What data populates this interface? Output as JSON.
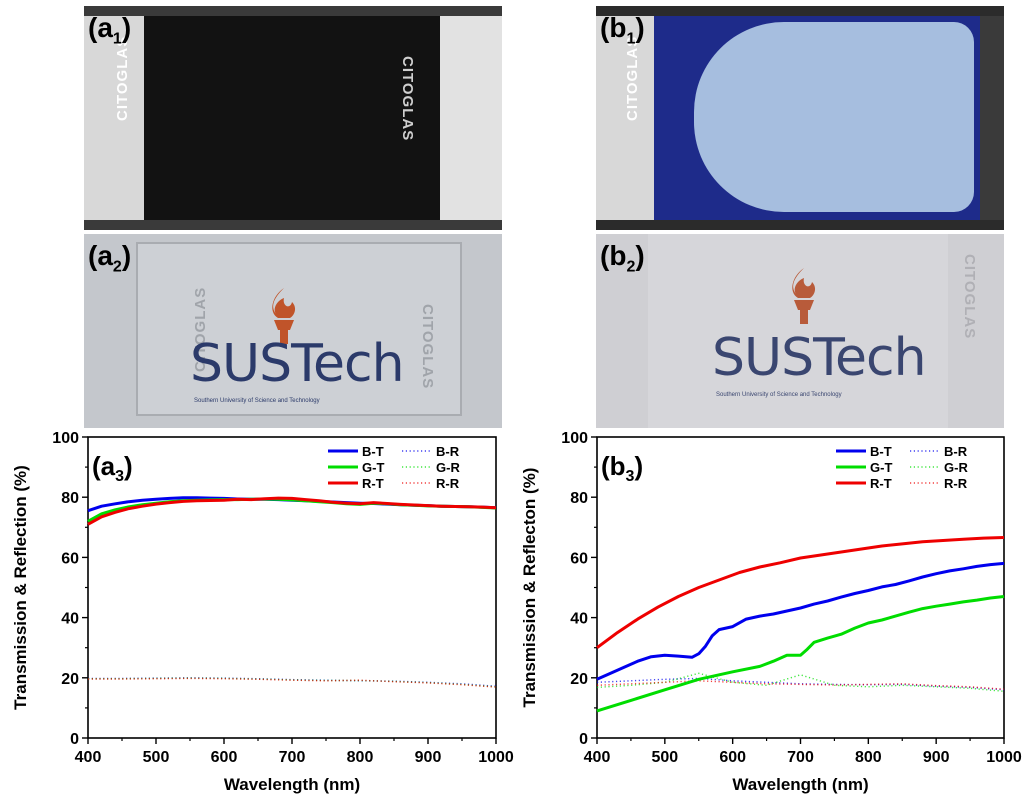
{
  "panels": {
    "a1": {
      "letter": "a",
      "index": "1",
      "glass_text": "CITOGLAS"
    },
    "b1": {
      "letter": "b",
      "index": "1",
      "glass_text": "CITOGLAS"
    },
    "a2": {
      "letter": "a",
      "index": "2",
      "glass_text": "CITOGLAS",
      "logo_text": "SUSTech",
      "logo_sub": "Southern University of Science and Technology"
    },
    "b2": {
      "letter": "b",
      "index": "2",
      "glass_text": "CITOGLAS",
      "logo_text": "SUSTech",
      "logo_sub": "Southern University of Science and Technology"
    }
  },
  "colors": {
    "blue": "#0000ee",
    "green": "#00dd00",
    "red": "#ee0000"
  },
  "chart_data": [
    {
      "type": "line",
      "panel_label": {
        "letter": "a",
        "index": "3"
      },
      "xlabel": "Wavelength (nm)",
      "ylabel": "Transmission & Reflection (%)",
      "xlim": [
        400,
        1000
      ],
      "ylim": [
        0,
        100
      ],
      "xticks": [
        400,
        500,
        600,
        700,
        800,
        900,
        1000
      ],
      "yticks": [
        0,
        20,
        40,
        60,
        80,
        100
      ],
      "legend_position": "top-right",
      "series": [
        {
          "name": "B-T",
          "color": "#0000ee",
          "style": "solid",
          "x": [
            400,
            420,
            440,
            460,
            480,
            500,
            520,
            540,
            560,
            580,
            600,
            620,
            640,
            660,
            680,
            700,
            720,
            740,
            760,
            780,
            800,
            820,
            840,
            860,
            880,
            900,
            920,
            940,
            960,
            980,
            1000
          ],
          "y": [
            75.5,
            77,
            77.8,
            78.5,
            79,
            79.3,
            79.6,
            79.8,
            79.8,
            79.7,
            79.6,
            79.4,
            79.3,
            79.3,
            79.2,
            79,
            78.8,
            78.6,
            78.4,
            78.2,
            78,
            77.9,
            77.7,
            77.5,
            77.3,
            77.2,
            77,
            76.9,
            76.8,
            76.7,
            76.5
          ]
        },
        {
          "name": "G-T",
          "color": "#00dd00",
          "style": "solid",
          "x": [
            400,
            420,
            440,
            460,
            480,
            500,
            520,
            540,
            560,
            580,
            600,
            620,
            640,
            660,
            680,
            700,
            720,
            740,
            760,
            780,
            800,
            820,
            840,
            860,
            880,
            900,
            920,
            940,
            960,
            980,
            1000
          ],
          "y": [
            72,
            74.5,
            75.8,
            76.8,
            77.5,
            78,
            78.5,
            78.8,
            79,
            79.1,
            79.2,
            79.2,
            79.3,
            79.4,
            79.3,
            79.1,
            78.8,
            78.5,
            78.2,
            77.8,
            77.6,
            78,
            77.8,
            77.5,
            77.3,
            77.1,
            77,
            76.9,
            76.8,
            76.6,
            76.4
          ]
        },
        {
          "name": "R-T",
          "color": "#ee0000",
          "style": "solid",
          "x": [
            400,
            420,
            440,
            460,
            480,
            500,
            520,
            540,
            560,
            580,
            600,
            620,
            640,
            660,
            680,
            700,
            720,
            740,
            760,
            780,
            800,
            820,
            840,
            860,
            880,
            900,
            920,
            940,
            960,
            980,
            1000
          ],
          "y": [
            71,
            73.5,
            75,
            76.2,
            77,
            77.7,
            78.2,
            78.6,
            78.8,
            78.9,
            79,
            79.3,
            79.2,
            79.5,
            79.7,
            79.6,
            79.2,
            78.8,
            78.3,
            78,
            77.8,
            78.2,
            77.9,
            77.6,
            77.4,
            77.2,
            77,
            76.9,
            76.8,
            76.7,
            76.5
          ]
        },
        {
          "name": "B-R",
          "color": "#0000ee",
          "style": "dotted",
          "x": [
            400,
            450,
            500,
            550,
            600,
            650,
            700,
            750,
            800,
            850,
            900,
            950,
            1000
          ],
          "y": [
            19.8,
            19.8,
            19.9,
            20,
            19.9,
            19.7,
            19.4,
            19.2,
            19,
            18.9,
            18.5,
            18,
            17.2
          ]
        },
        {
          "name": "G-R",
          "color": "#00dd00",
          "style": "dotted",
          "x": [
            400,
            450,
            500,
            550,
            600,
            650,
            700,
            750,
            800,
            850,
            900,
            950,
            1000
          ],
          "y": [
            19.7,
            19.7,
            19.8,
            19.9,
            19.8,
            19.6,
            19.3,
            19.1,
            19.1,
            18.8,
            18.4,
            17.8,
            17
          ]
        },
        {
          "name": "R-R",
          "color": "#ee0000",
          "style": "dotted",
          "x": [
            400,
            450,
            500,
            550,
            600,
            650,
            700,
            750,
            800,
            850,
            900,
            950,
            1000
          ],
          "y": [
            19.6,
            19.6,
            19.7,
            19.8,
            19.7,
            19.5,
            19.2,
            19,
            19.2,
            18.7,
            18.3,
            17.7,
            16.9
          ]
        }
      ]
    },
    {
      "type": "line",
      "panel_label": {
        "letter": "b",
        "index": "3"
      },
      "xlabel": "Wavelength (nm)",
      "ylabel": "Transmission & Reflecton (%)",
      "xlim": [
        400,
        1000
      ],
      "ylim": [
        0,
        100
      ],
      "xticks": [
        400,
        500,
        600,
        700,
        800,
        900,
        1000
      ],
      "yticks": [
        0,
        20,
        40,
        60,
        80,
        100
      ],
      "legend_position": "top-right",
      "series": [
        {
          "name": "B-T",
          "color": "#0000ee",
          "style": "solid",
          "x": [
            400,
            420,
            440,
            460,
            480,
            500,
            520,
            540,
            550,
            560,
            570,
            580,
            600,
            620,
            640,
            660,
            680,
            700,
            720,
            740,
            760,
            780,
            800,
            820,
            840,
            860,
            880,
            900,
            920,
            940,
            960,
            980,
            1000
          ],
          "y": [
            19.5,
            21.5,
            23.5,
            25.5,
            27,
            27.5,
            27.2,
            26.8,
            28,
            30.5,
            34,
            36,
            37,
            39.5,
            40.5,
            41.2,
            42.2,
            43.2,
            44.5,
            45.5,
            46.8,
            48,
            49,
            50.2,
            51,
            52.2,
            53.5,
            54.6,
            55.5,
            56.2,
            57,
            57.6,
            58
          ]
        },
        {
          "name": "G-T",
          "color": "#00dd00",
          "style": "solid",
          "x": [
            400,
            450,
            500,
            550,
            600,
            640,
            660,
            680,
            700,
            710,
            720,
            740,
            760,
            780,
            800,
            820,
            840,
            860,
            880,
            900,
            920,
            940,
            960,
            980,
            1000
          ],
          "y": [
            9,
            12.5,
            16,
            19.5,
            22,
            23.8,
            25.5,
            27.5,
            27.5,
            29.5,
            31.8,
            33.2,
            34.5,
            36.5,
            38.2,
            39.2,
            40.5,
            41.8,
            43,
            43.8,
            44.5,
            45.2,
            45.8,
            46.5,
            47
          ]
        },
        {
          "name": "R-T",
          "color": "#ee0000",
          "style": "solid",
          "x": [
            400,
            430,
            460,
            490,
            520,
            550,
            580,
            610,
            640,
            670,
            700,
            730,
            760,
            790,
            820,
            850,
            880,
            910,
            940,
            970,
            1000
          ],
          "y": [
            30,
            35,
            39.5,
            43.5,
            47,
            50,
            52.5,
            55,
            56.8,
            58.2,
            59.8,
            60.8,
            61.8,
            62.8,
            63.8,
            64.5,
            65.2,
            65.6,
            66,
            66.4,
            66.6
          ]
        },
        {
          "name": "B-R",
          "color": "#0000ee",
          "style": "dotted",
          "x": [
            400,
            450,
            500,
            550,
            600,
            650,
            700,
            750,
            800,
            850,
            900,
            950,
            1000
          ],
          "y": [
            18.5,
            19,
            19.5,
            19.8,
            19,
            18.5,
            18,
            17.8,
            17.7,
            17.8,
            17.2,
            16.8,
            16
          ]
        },
        {
          "name": "G-R",
          "color": "#00dd00",
          "style": "dotted",
          "x": [
            400,
            450,
            500,
            550,
            600,
            650,
            700,
            750,
            800,
            850,
            900,
            950,
            1000
          ],
          "y": [
            16.8,
            17.5,
            18.5,
            21.5,
            18.5,
            17.5,
            21,
            17.5,
            17,
            17.5,
            17,
            16.5,
            15.5
          ]
        },
        {
          "name": "R-R",
          "color": "#ee0000",
          "style": "dotted",
          "x": [
            400,
            450,
            500,
            550,
            600,
            650,
            700,
            750,
            800,
            850,
            900,
            950,
            1000
          ],
          "y": [
            17.5,
            18,
            18.5,
            19,
            18.5,
            18,
            17.8,
            17.6,
            17.8,
            18,
            17.4,
            17,
            16.2
          ]
        }
      ]
    }
  ]
}
